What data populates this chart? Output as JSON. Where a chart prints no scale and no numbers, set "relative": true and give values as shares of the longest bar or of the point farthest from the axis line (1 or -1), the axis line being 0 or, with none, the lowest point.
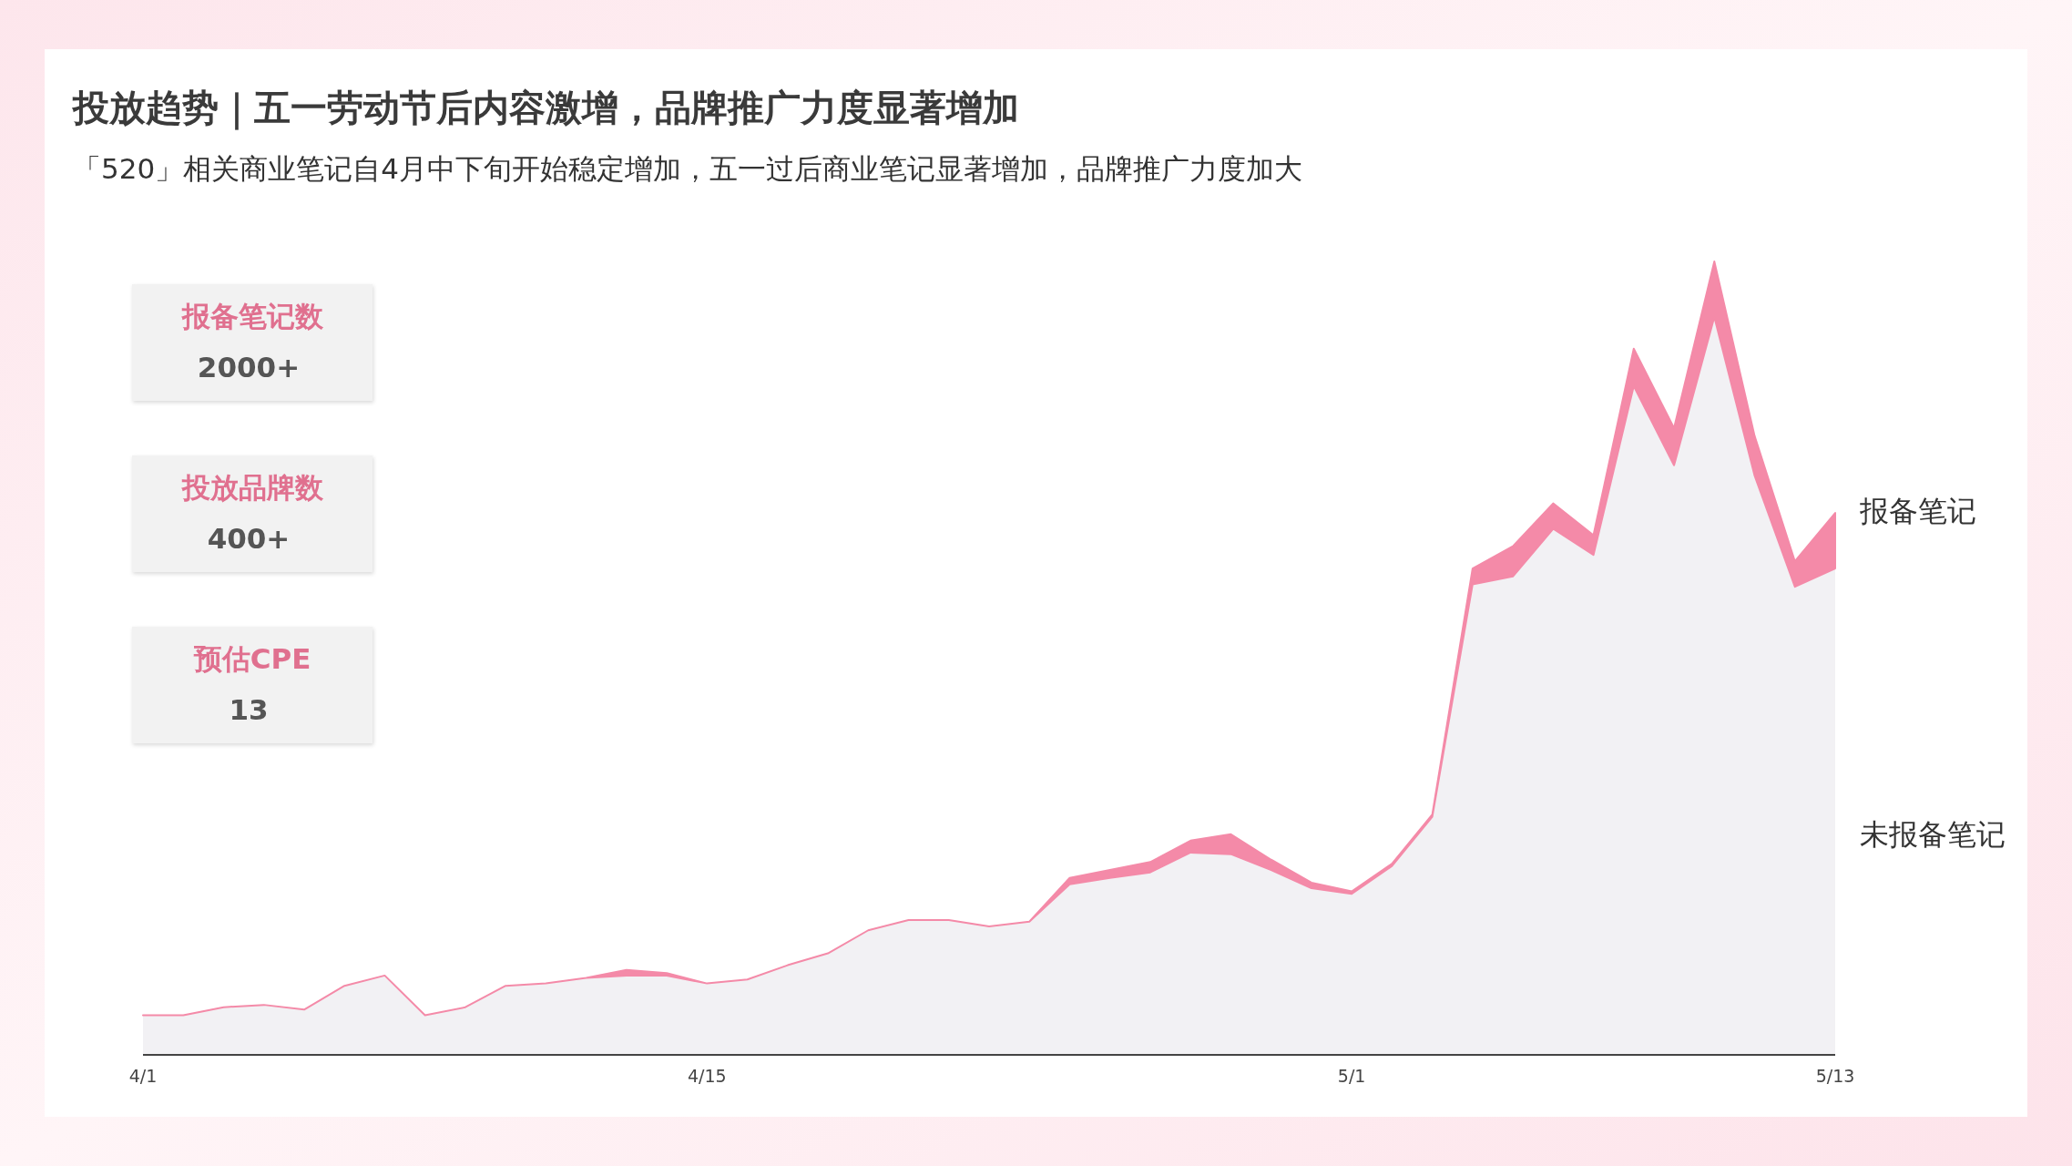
{
  "chart_data": {
    "type": "area",
    "stacked": true,
    "relative": true,
    "title": "投放趋势｜五一劳动节后内容激增，品牌推广力度显著增加",
    "subtitle": "「520」相关商业笔记自4月中下旬开始稳定增加，五一过后商业笔记显著增加，品牌推广力度加大",
    "annotations": [
      "报备笔记数",
      "2000+",
      "投放品牌数",
      "400+",
      "预估CPE",
      "13"
    ],
    "categories": [
      "4/1",
      null,
      null,
      null,
      null,
      null,
      null,
      null,
      null,
      null,
      null,
      null,
      null,
      null,
      "4/15",
      null,
      null,
      null,
      null,
      null,
      null,
      null,
      null,
      null,
      null,
      null,
      null,
      null,
      null,
      null,
      "5/1",
      null,
      null,
      null,
      null,
      null,
      null,
      null,
      null,
      null,
      null,
      null,
      "5/13"
    ],
    "series": [
      {
        "name": "未报备笔记",
        "color": "#f2f1f4",
        "values": [
          0.05,
          0.05,
          0.06,
          0.063,
          0.057,
          0.087,
          0.1,
          0.05,
          0.06,
          0.087,
          0.09,
          0.097,
          0.1,
          0.1,
          0.09,
          0.095,
          0.113,
          0.128,
          0.157,
          0.17,
          0.17,
          0.162,
          0.168,
          0.215,
          0.223,
          0.23,
          0.255,
          0.253,
          0.233,
          0.21,
          0.203,
          0.238,
          0.3,
          0.593,
          0.603,
          0.663,
          0.63,
          0.843,
          0.743,
          0.93,
          0.73,
          0.59,
          0.613
        ]
      },
      {
        "name": "报备笔记",
        "color": "#f48aa8",
        "values": [
          0,
          0,
          0,
          0,
          0,
          0,
          0,
          0,
          0,
          0,
          0,
          0,
          0.007,
          0.003,
          0,
          0,
          0,
          0,
          0,
          0,
          0,
          0,
          0,
          0.008,
          0.01,
          0.013,
          0.015,
          0.025,
          0.013,
          0.007,
          0.003,
          0.003,
          0.003,
          0.02,
          0.038,
          0.032,
          0.025,
          0.047,
          0.047,
          0.07,
          0.05,
          0.032,
          0.07
        ]
      }
    ]
  }
}
